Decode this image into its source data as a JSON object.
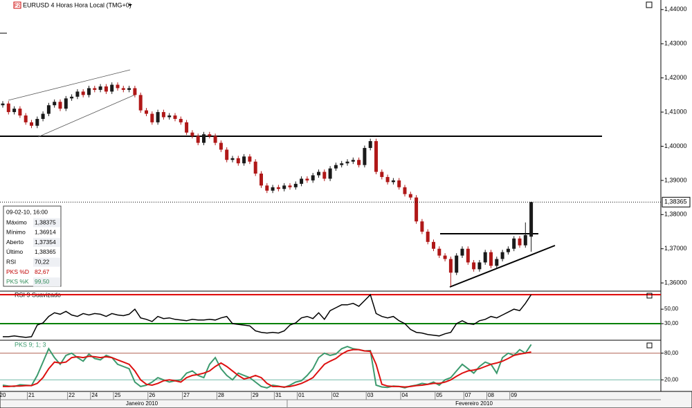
{
  "chart_data": [
    {
      "type": "candlestick",
      "badge": "F2",
      "title": "EURUSD 4 Horas Hora Local (TMG+0)",
      "categories": [
        "20",
        null,
        null,
        null,
        null,
        "21",
        null,
        null,
        null,
        null,
        null,
        null,
        "22",
        null,
        null,
        null,
        "24",
        null,
        null,
        null,
        "25",
        null,
        null,
        null,
        null,
        null,
        "26",
        null,
        null,
        null,
        null,
        null,
        "27",
        null,
        null,
        null,
        null,
        null,
        "28",
        null,
        null,
        null,
        null,
        null,
        "29",
        null,
        null,
        null,
        "31",
        null,
        null,
        null,
        "01",
        null,
        null,
        null,
        null,
        null,
        "02",
        null,
        null,
        null,
        null,
        null,
        "03",
        null,
        null,
        null,
        null,
        null,
        "04",
        null,
        null,
        null,
        null,
        null,
        "05",
        null,
        null,
        null,
        null,
        "07",
        null,
        null,
        null,
        "08",
        null,
        null,
        null,
        "09",
        null,
        null,
        null
      ],
      "open": [
        1.412,
        1.4125,
        1.41,
        1.411,
        1.409,
        1.407,
        1.406,
        1.408,
        1.4095,
        1.412,
        1.413,
        1.411,
        1.414,
        1.4145,
        1.416,
        1.415,
        1.417,
        1.4165,
        1.4175,
        1.416,
        1.418,
        1.417,
        1.4165,
        1.417,
        1.415,
        1.4105,
        1.4095,
        1.407,
        1.41,
        1.4085,
        1.409,
        1.408,
        1.407,
        1.404,
        1.403,
        1.401,
        1.4035,
        1.403,
        1.401,
        1.399,
        1.396,
        1.3965,
        1.395,
        1.397,
        1.3955,
        1.392,
        1.3885,
        1.387,
        1.388,
        1.3875,
        1.3885,
        1.388,
        1.389,
        1.3905,
        1.39,
        1.3915,
        1.3925,
        1.3905,
        1.3935,
        1.3945,
        1.395,
        1.3955,
        1.396,
        1.3945,
        1.3995,
        1.4015,
        1.3925,
        1.391,
        1.3895,
        1.39,
        1.388,
        1.386,
        1.385,
        1.378,
        1.375,
        1.372,
        1.37,
        1.368,
        1.367,
        1.363,
        1.368,
        1.37,
        1.366,
        1.364,
        1.366,
        1.369,
        1.365,
        1.367,
        1.369,
        1.37,
        1.373,
        1.371,
        1.37354
      ],
      "high": [
        1.4132,
        1.4132,
        1.4117,
        1.4117,
        1.4097,
        1.4077,
        1.4087,
        1.4102,
        1.4127,
        1.4137,
        1.4137,
        1.4147,
        1.4152,
        1.4167,
        1.4167,
        1.4177,
        1.4177,
        1.4182,
        1.4182,
        1.4187,
        1.4187,
        1.4177,
        1.4177,
        1.4177,
        1.4157,
        1.4112,
        1.4102,
        1.4107,
        1.4107,
        1.4097,
        1.4097,
        1.4087,
        1.4077,
        1.4047,
        1.4037,
        1.4042,
        1.4042,
        1.4037,
        1.4017,
        1.3997,
        1.3972,
        1.3972,
        1.3977,
        1.3977,
        1.3962,
        1.3927,
        1.3892,
        1.3887,
        1.3887,
        1.3892,
        1.3892,
        1.3897,
        1.3912,
        1.3912,
        1.3922,
        1.3932,
        1.3932,
        1.3942,
        1.3952,
        1.3957,
        1.3962,
        1.3967,
        1.3967,
        1.4002,
        1.4022,
        1.4022,
        1.3932,
        1.3917,
        1.3907,
        1.3907,
        1.3887,
        1.3867,
        1.3857,
        1.3787,
        1.3757,
        1.3727,
        1.3707,
        1.3687,
        1.3677,
        1.3687,
        1.3707,
        1.3707,
        1.3667,
        1.3667,
        1.3697,
        1.3697,
        1.3677,
        1.3697,
        1.3707,
        1.3737,
        1.3737,
        1.3777,
        1.38375
      ],
      "low": [
        1.4113,
        1.4093,
        1.4093,
        1.4083,
        1.4063,
        1.4053,
        1.4053,
        1.4073,
        1.4088,
        1.4113,
        1.4103,
        1.4103,
        1.4133,
        1.4138,
        1.4143,
        1.4143,
        1.4158,
        1.4158,
        1.4153,
        1.4153,
        1.4163,
        1.4158,
        1.4158,
        1.4143,
        1.4098,
        1.4088,
        1.4063,
        1.4063,
        1.4078,
        1.4078,
        1.4073,
        1.4063,
        1.4033,
        1.4023,
        1.4003,
        1.4003,
        1.4023,
        1.4003,
        1.3983,
        1.3953,
        1.3953,
        1.3943,
        1.3943,
        1.3948,
        1.3913,
        1.3878,
        1.3863,
        1.3863,
        1.3868,
        1.3868,
        1.3873,
        1.3873,
        1.3883,
        1.3893,
        1.3893,
        1.3908,
        1.3898,
        1.3898,
        1.3928,
        1.3938,
        1.3943,
        1.3948,
        1.3938,
        1.3938,
        1.3988,
        1.3918,
        1.3903,
        1.3888,
        1.3888,
        1.3873,
        1.3853,
        1.3843,
        1.3773,
        1.3743,
        1.3713,
        1.3693,
        1.3673,
        1.3663,
        1.359,
        1.3623,
        1.3673,
        1.3653,
        1.3633,
        1.3633,
        1.3653,
        1.3643,
        1.3643,
        1.3663,
        1.3683,
        1.3693,
        1.3703,
        1.3703,
        1.36914
      ],
      "close": [
        1.4125,
        1.41,
        1.411,
        1.409,
        1.407,
        1.406,
        1.408,
        1.4095,
        1.412,
        1.413,
        1.411,
        1.414,
        1.4145,
        1.416,
        1.415,
        1.417,
        1.4165,
        1.4175,
        1.416,
        1.418,
        1.417,
        1.4165,
        1.417,
        1.415,
        1.4105,
        1.4095,
        1.407,
        1.41,
        1.4085,
        1.409,
        1.408,
        1.407,
        1.404,
        1.403,
        1.401,
        1.4035,
        1.403,
        1.401,
        1.399,
        1.396,
        1.3965,
        1.395,
        1.397,
        1.3955,
        1.392,
        1.3885,
        1.387,
        1.388,
        1.3875,
        1.3885,
        1.388,
        1.389,
        1.3905,
        1.39,
        1.3915,
        1.3925,
        1.3905,
        1.3935,
        1.3945,
        1.395,
        1.3955,
        1.396,
        1.3945,
        1.3995,
        1.4015,
        1.3925,
        1.391,
        1.3895,
        1.39,
        1.388,
        1.386,
        1.385,
        1.378,
        1.375,
        1.372,
        1.37,
        1.368,
        1.367,
        1.363,
        1.368,
        1.37,
        1.366,
        1.364,
        1.366,
        1.369,
        1.365,
        1.367,
        1.369,
        1.37,
        1.373,
        1.371,
        1.374,
        1.38365
      ],
      "up_color": "#1a1a1a",
      "down_color": "#b01818",
      "ylim": [
        1.3578,
        1.4428
      ],
      "yticks": [
        {
          "value": 1.44,
          "label": "1,44000"
        },
        {
          "value": 1.43,
          "label": "1,43000"
        },
        {
          "value": 1.42,
          "label": "1,42000"
        },
        {
          "value": 1.41,
          "label": "1,41000"
        },
        {
          "value": 1.4,
          "label": "1,40000"
        },
        {
          "value": 1.39,
          "label": "1,39000"
        },
        {
          "value": 1.38,
          "label": "1,38000"
        },
        {
          "value": 1.37,
          "label": "1,37000"
        },
        {
          "value": 1.36,
          "label": "1,36000"
        }
      ],
      "last_price": {
        "value": 1.38365,
        "label": "1,38365"
      },
      "months": [
        "Janeiro 2010",
        "Fevereiro 2010"
      ]
    },
    {
      "type": "line",
      "title": "RSI 9 Suavizado",
      "series": [
        {
          "color": "#000000",
          "values": [
            12,
            12,
            13,
            12,
            11,
            12,
            28,
            31,
            40,
            45,
            43,
            47,
            42,
            40,
            44,
            42,
            44,
            43,
            40,
            44,
            42,
            41,
            43,
            50,
            38,
            36,
            33,
            40,
            37,
            38,
            36,
            35,
            34,
            36,
            35,
            35,
            36,
            35,
            38,
            40,
            30,
            29,
            28,
            27,
            20,
            18,
            17,
            18,
            17,
            20,
            28,
            31,
            38,
            40,
            37,
            45,
            36,
            48,
            52,
            56,
            56,
            58,
            54,
            62,
            70,
            44,
            40,
            38,
            40,
            34,
            30,
            22,
            18,
            17,
            15,
            14,
            13,
            16,
            18,
            30,
            34,
            30,
            29,
            34,
            36,
            40,
            38,
            42,
            46,
            50,
            48,
            58,
            70.22
          ]
        }
      ],
      "levels": [
        {
          "value": 70,
          "color": "#dd0000"
        },
        {
          "value": 30,
          "color": "#008000"
        }
      ],
      "ylim": [
        9,
        74
      ],
      "yticks": [
        {
          "value": 50,
          "label": "50,00"
        },
        {
          "value": 30,
          "label": "30,00"
        }
      ]
    },
    {
      "type": "line",
      "title": "PKS 9; 1; 3",
      "series": [
        {
          "color": "#3c9a6e",
          "values": [
            8,
            6,
            5,
            9,
            8,
            7,
            30,
            60,
            90,
            70,
            55,
            75,
            80,
            70,
            62,
            78,
            68,
            65,
            75,
            70,
            55,
            50,
            45,
            15,
            5,
            8,
            15,
            25,
            20,
            15,
            18,
            20,
            35,
            40,
            30,
            25,
            55,
            70,
            45,
            30,
            20,
            35,
            30,
            25,
            15,
            5,
            2,
            8,
            6,
            3,
            8,
            15,
            18,
            30,
            45,
            70,
            80,
            75,
            78,
            90,
            95,
            90,
            88,
            85,
            86,
            8,
            4,
            3,
            6,
            5,
            2,
            6,
            8,
            12,
            10,
            15,
            8,
            20,
            25,
            40,
            55,
            45,
            35,
            50,
            60,
            55,
            35,
            70,
            80,
            75,
            88,
            80,
            99.5
          ]
        },
        {
          "color": "#dd1010",
          "values": [
            5,
            5,
            6,
            6,
            7,
            7,
            12,
            25,
            45,
            60,
            58,
            60,
            70,
            72,
            70,
            73,
            72,
            70,
            72,
            70,
            65,
            60,
            55,
            40,
            20,
            10,
            8,
            12,
            18,
            20,
            18,
            15,
            25,
            30,
            32,
            35,
            40,
            50,
            58,
            50,
            40,
            30,
            22,
            25,
            30,
            25,
            12,
            5,
            5,
            4,
            5,
            8,
            12,
            18,
            25,
            40,
            55,
            62,
            68,
            78,
            85,
            88,
            88,
            85,
            84,
            55,
            10,
            6,
            5,
            5,
            4,
            5,
            7,
            8,
            10,
            12,
            12,
            15,
            20,
            28,
            35,
            40,
            42,
            45,
            50,
            55,
            58,
            62,
            68,
            75,
            78,
            80,
            82.67
          ]
        }
      ],
      "levels": [
        {
          "value": 80,
          "color": "#b06050"
        },
        {
          "value": 20,
          "color": "#70b8a8"
        }
      ],
      "ylim": [
        -6,
        106
      ],
      "yticks": [
        {
          "value": 80,
          "label": "80,00"
        },
        {
          "value": 20,
          "label": "20,00"
        }
      ]
    }
  ],
  "info": {
    "timestamp": "09-02-10, 16:00",
    "rows": [
      [
        "Máximo",
        "1,38375"
      ],
      [
        "Mínimo",
        "1,36914"
      ],
      [
        "Aberto",
        "1,37354"
      ],
      [
        "Último",
        "1,38365"
      ],
      [
        "RSI",
        "70,22"
      ],
      [
        "PKS %D",
        "82,67"
      ],
      [
        "PKS %K",
        "99,50"
      ]
    ]
  }
}
